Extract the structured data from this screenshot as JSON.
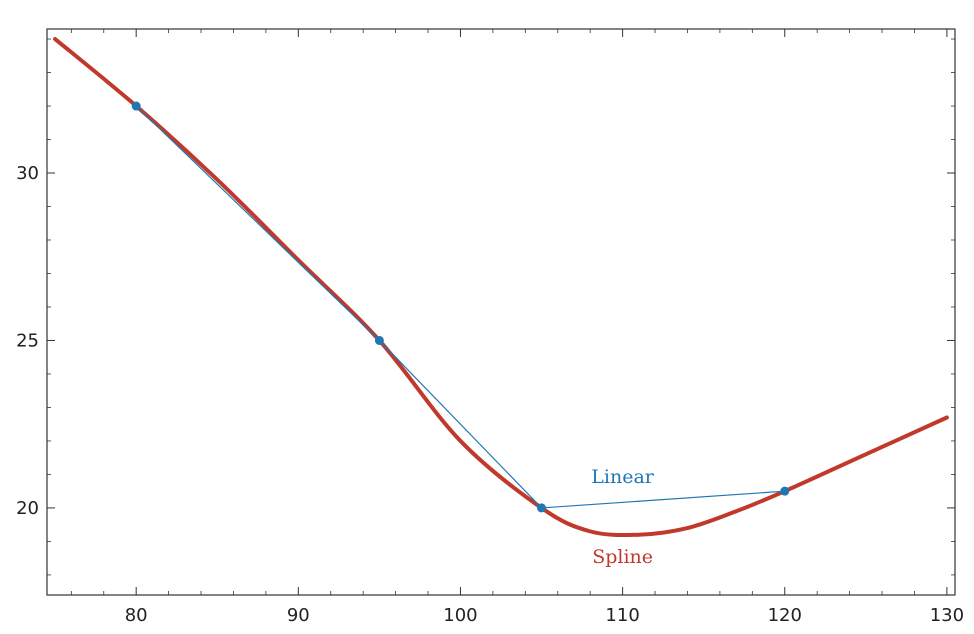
{
  "chart_data": {
    "type": "line",
    "title": "",
    "xlabel": "",
    "ylabel": "",
    "xlim": [
      74.5,
      130.5
    ],
    "ylim": [
      17.4,
      34.3
    ],
    "x_ticks": [
      80,
      90,
      100,
      110,
      120,
      130
    ],
    "y_ticks": [
      20,
      25,
      30
    ],
    "x_tick_labels": [
      "80",
      "90",
      "100",
      "110",
      "120",
      "130"
    ],
    "y_tick_labels": [
      "20",
      "25",
      "30"
    ],
    "grid": false,
    "series": [
      {
        "name": "Linear",
        "style": "thin line with point markers",
        "color": "#1f77b4",
        "points": [
          {
            "x": 80,
            "y": 32
          },
          {
            "x": 95,
            "y": 25
          },
          {
            "x": 105,
            "y": 20
          },
          {
            "x": 120,
            "y": 20.5
          }
        ]
      },
      {
        "name": "Spline",
        "style": "thick smooth curve",
        "color": "#c0392b",
        "points": [
          {
            "x": 75,
            "y": 34.0
          },
          {
            "x": 80,
            "y": 32.0
          },
          {
            "x": 85,
            "y": 29.8
          },
          {
            "x": 90,
            "y": 27.4
          },
          {
            "x": 95,
            "y": 25.0
          },
          {
            "x": 100,
            "y": 22.0
          },
          {
            "x": 105,
            "y": 20.0
          },
          {
            "x": 108,
            "y": 19.3
          },
          {
            "x": 111,
            "y": 19.2
          },
          {
            "x": 114,
            "y": 19.4
          },
          {
            "x": 117,
            "y": 19.9
          },
          {
            "x": 120,
            "y": 20.5
          },
          {
            "x": 125,
            "y": 21.6
          },
          {
            "x": 130,
            "y": 22.7
          }
        ]
      }
    ],
    "annotations": [
      {
        "text": "Linear",
        "x": 110,
        "y": 20.75,
        "color": "#1f77b4"
      },
      {
        "text": "Spline",
        "x": 110,
        "y": 18.35,
        "color": "#c0392b"
      }
    ]
  }
}
